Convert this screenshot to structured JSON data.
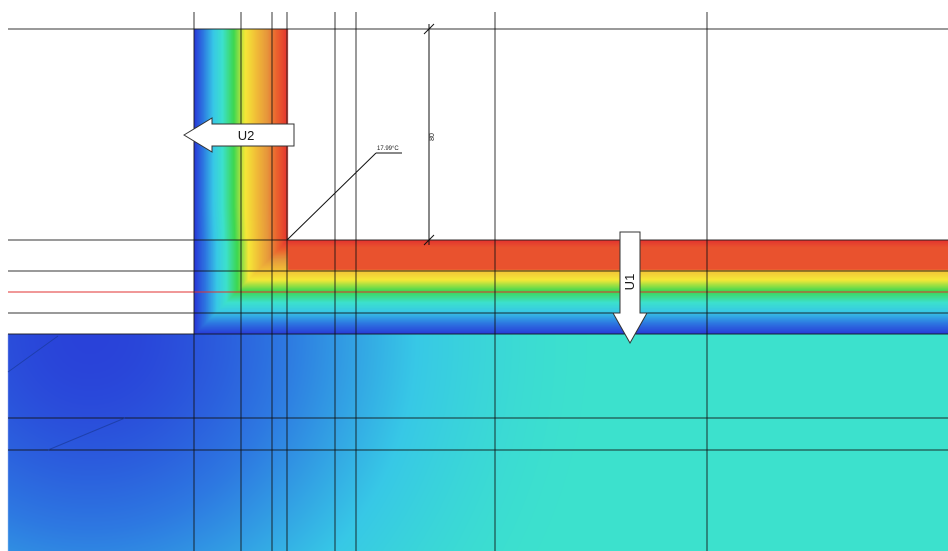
{
  "annotations": {
    "u2_label": "U2",
    "u1_label": "U1",
    "temperature_label": "17.99°C",
    "dimension_label": "80"
  },
  "colors": {
    "hot": "#e3342f",
    "warm": "#f0a030",
    "mild": "#f4e23a",
    "cool": "#34d24a",
    "cold": "#3fd9d0",
    "coldest": "#2a3fd6",
    "guide_line": "#111111",
    "section_line": "#e03030"
  }
}
